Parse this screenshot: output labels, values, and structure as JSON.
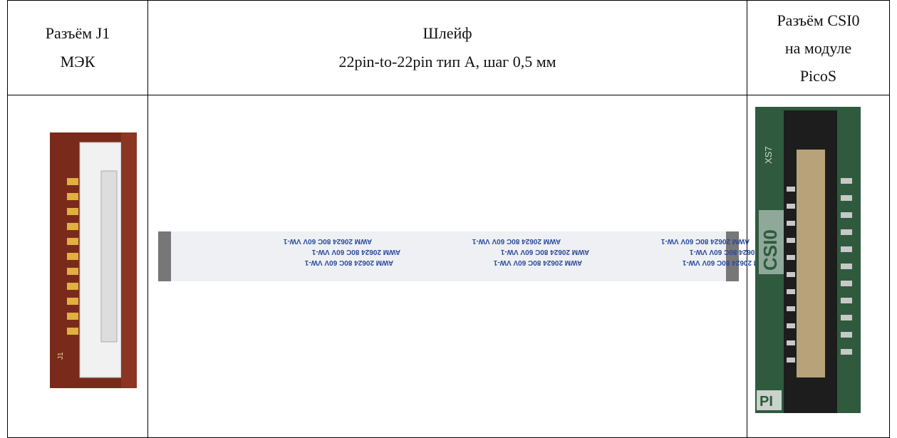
{
  "table": {
    "header": [
      [
        "Разъём J1",
        "МЭК"
      ],
      [
        "Шлейф",
        "22pin-to-22pin тип А, шаг 0,5 мм"
      ],
      [
        "Разъём CSI0",
        "на модуле",
        "PicoS"
      ]
    ],
    "images": {
      "connector_j1": {
        "label": "J1"
      },
      "cable": {
        "label": "AWM 20624 80C 60V VW-1"
      },
      "csi0": {
        "labels": [
          "XS7",
          "CSI0",
          "PI"
        ]
      }
    }
  }
}
